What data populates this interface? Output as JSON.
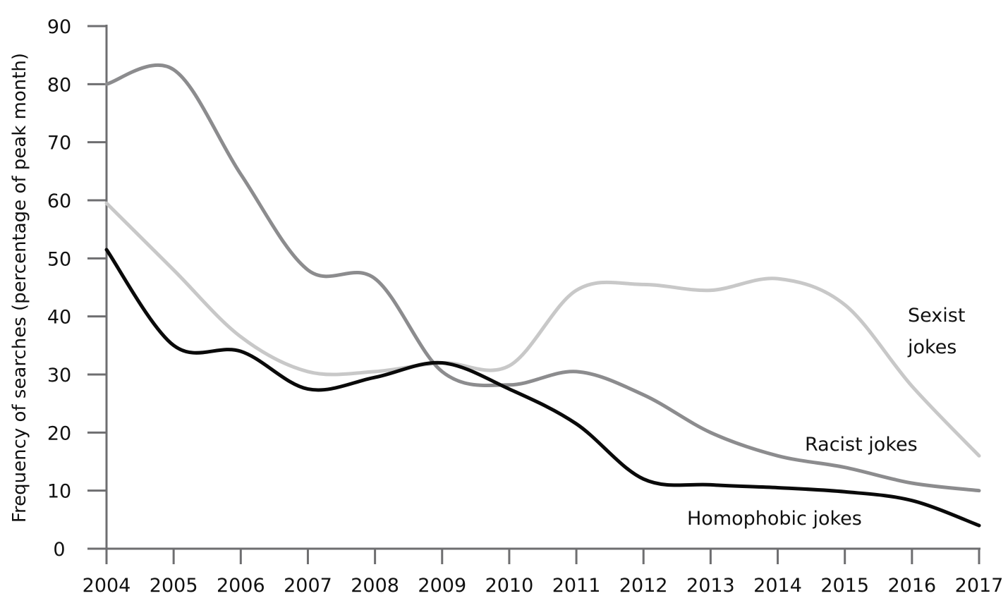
{
  "chart_data": {
    "type": "line",
    "title": "",
    "xlabel": "",
    "ylabel": "Frequency of searches (percentage of peak month)",
    "x": [
      2004,
      2005,
      2006,
      2007,
      2008,
      2009,
      2010,
      2011,
      2012,
      2013,
      2014,
      2015,
      2016,
      2017
    ],
    "x_tick_labels": [
      "2004",
      "2005",
      "2006",
      "2007",
      "2008",
      "2009",
      "2010",
      "2011",
      "2012",
      "2013",
      "2014",
      "2015",
      "2016",
      "2017"
    ],
    "ylim": [
      0,
      90
    ],
    "y_ticks": [
      0,
      10,
      20,
      30,
      40,
      50,
      60,
      70,
      80,
      90
    ],
    "y_tick_labels": [
      "0",
      "10",
      "20",
      "30",
      "40",
      "50",
      "60",
      "70",
      "80",
      "90"
    ],
    "grid": false,
    "legend": "none",
    "series": [
      {
        "name": "Sexist jokes",
        "label_lines": [
          "Sexist",
          "jokes"
        ],
        "color": "#c8c8c8",
        "values": [
          59.5,
          48,
          36.5,
          30.5,
          30.5,
          32,
          31.5,
          44.5,
          45.5,
          44.5,
          46.5,
          42,
          28,
          16
        ]
      },
      {
        "name": "Racist jokes",
        "label_lines": [
          "Racist jokes"
        ],
        "color": "#8c8c8e",
        "values": [
          80,
          82.5,
          64.5,
          48,
          46.5,
          30.5,
          28.2,
          30.5,
          26.5,
          20,
          16,
          14,
          11.3,
          10
        ]
      },
      {
        "name": "Homophobic jokes",
        "label_lines": [
          "Homophobic jokes"
        ],
        "color": "#0a0a0a",
        "values": [
          51.5,
          35,
          34,
          27.5,
          29.5,
          32,
          27.5,
          21.5,
          12,
          11,
          10.5,
          9.8,
          8.3,
          4
        ]
      }
    ]
  }
}
